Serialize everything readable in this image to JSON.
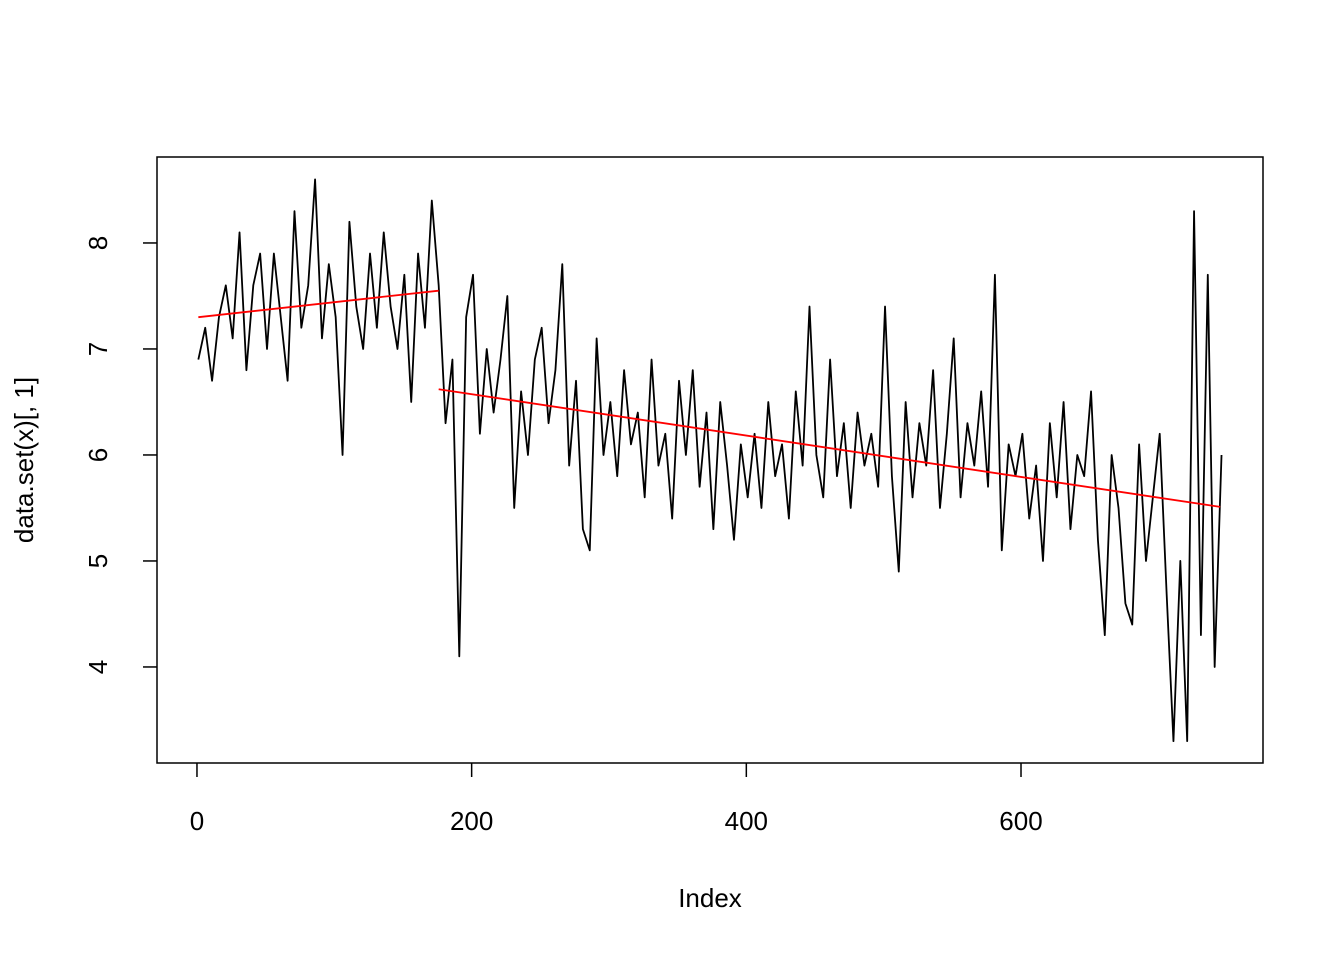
{
  "chart_data": {
    "type": "line",
    "xlabel": "Index",
    "ylabel": "data.set(x)[, 1]",
    "xlim": [
      -29.1,
      776.2
    ],
    "ylim": [
      3.094,
      8.811
    ],
    "xticks": [
      0,
      200,
      400,
      600
    ],
    "yticks": [
      4,
      5,
      6,
      7,
      8
    ],
    "series": [
      {
        "color": "#000000",
        "x": [
          1,
          6,
          11,
          16,
          21,
          26,
          31,
          36,
          41,
          46,
          51,
          56,
          61,
          66,
          71,
          76,
          81,
          86,
          91,
          96,
          101,
          106,
          111,
          116,
          121,
          126,
          131,
          136,
          141,
          146,
          151,
          156,
          161,
          166,
          171,
          176,
          181,
          186,
          191,
          196,
          201,
          206,
          211,
          216,
          221,
          226,
          231,
          236,
          241,
          246,
          251,
          256,
          261,
          266,
          271,
          276,
          281,
          286,
          291,
          296,
          301,
          306,
          311,
          316,
          321,
          326,
          331,
          336,
          341,
          346,
          351,
          356,
          361,
          366,
          371,
          376,
          381,
          386,
          391,
          396,
          401,
          406,
          411,
          416,
          421,
          426,
          431,
          436,
          441,
          446,
          451,
          456,
          461,
          466,
          471,
          476,
          481,
          486,
          491,
          496,
          501,
          506,
          511,
          516,
          521,
          526,
          531,
          536,
          541,
          546,
          551,
          556,
          561,
          566,
          571,
          576,
          581,
          586,
          591,
          596,
          601,
          606,
          611,
          616,
          621,
          626,
          631,
          636,
          641,
          646,
          651,
          656,
          661,
          666,
          671,
          676,
          681,
          686,
          691,
          696,
          701,
          706,
          711,
          716,
          721,
          726,
          731,
          736,
          741,
          746
        ],
        "values": [
          6.9,
          7.2,
          6.7,
          7.3,
          7.6,
          7.1,
          8.1,
          6.8,
          7.6,
          7.9,
          7.0,
          7.9,
          7.3,
          6.7,
          8.3,
          7.2,
          7.6,
          8.6,
          7.1,
          7.8,
          7.3,
          6.0,
          8.2,
          7.4,
          7.0,
          7.9,
          7.2,
          8.1,
          7.4,
          7.0,
          7.7,
          6.5,
          7.9,
          7.2,
          8.4,
          7.6,
          6.3,
          6.9,
          4.1,
          7.3,
          7.7,
          6.2,
          7.0,
          6.4,
          6.9,
          7.5,
          5.5,
          6.6,
          6.0,
          6.9,
          7.2,
          6.3,
          6.8,
          7.8,
          5.9,
          6.7,
          5.3,
          5.1,
          7.1,
          6.0,
          6.5,
          5.8,
          6.8,
          6.1,
          6.4,
          5.6,
          6.9,
          5.9,
          6.2,
          5.4,
          6.7,
          6.0,
          6.8,
          5.7,
          6.4,
          5.3,
          6.5,
          5.9,
          5.2,
          6.1,
          5.6,
          6.2,
          5.5,
          6.5,
          5.8,
          6.1,
          5.4,
          6.6,
          5.9,
          7.4,
          6.0,
          5.6,
          6.9,
          5.8,
          6.3,
          5.5,
          6.4,
          5.9,
          6.2,
          5.7,
          7.4,
          5.8,
          4.9,
          6.5,
          5.6,
          6.3,
          5.9,
          6.8,
          5.5,
          6.2,
          7.1,
          5.6,
          6.3,
          5.9,
          6.6,
          5.7,
          7.7,
          5.1,
          6.1,
          5.8,
          6.2,
          5.4,
          5.9,
          5.0,
          6.3,
          5.6,
          6.5,
          5.3,
          6.0,
          5.8,
          6.6,
          5.2,
          4.3,
          6.0,
          5.5,
          4.6,
          4.4,
          6.1,
          5.0,
          5.6,
          6.2,
          4.7,
          3.3,
          5.0,
          3.3,
          8.3,
          4.3,
          7.7,
          4.0,
          6.0
        ]
      },
      {
        "color": "#ff0000",
        "x": [
          1,
          176
        ],
        "values": [
          7.3,
          7.55
        ]
      },
      {
        "color": "#ff0000",
        "x": [
          176,
          745
        ],
        "values": [
          6.62,
          5.51
        ]
      }
    ]
  }
}
